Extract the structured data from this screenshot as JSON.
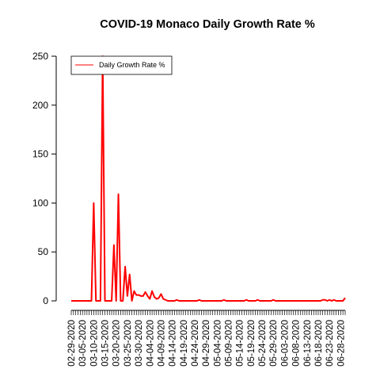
{
  "chart_data": {
    "type": "line",
    "title": "COVID-19 Monaco Daily Growth Rate %",
    "xlabel": "",
    "ylabel": "",
    "ylim": [
      0,
      250
    ],
    "yticks": [
      0,
      50,
      100,
      150,
      200,
      250
    ],
    "x_start": "02-29-2020",
    "x_end": "06-30-2020",
    "xtick_labels": [
      "02-29-2020",
      "03-05-2020",
      "03-10-2020",
      "03-15-2020",
      "03-20-2020",
      "03-25-2020",
      "03-30-2020",
      "04-04-2020",
      "04-09-2020",
      "04-14-2020",
      "04-19-2020",
      "04-24-2020",
      "04-29-2020",
      "05-04-2020",
      "05-09-2020",
      "05-14-2020",
      "05-19-2020",
      "05-24-2020",
      "05-29-2020",
      "06-03-2020",
      "06-08-2020",
      "06-13-2020",
      "06-18-2020",
      "06-23-2020",
      "06-28-2020"
    ],
    "legend": {
      "position": "top-left"
    },
    "colors": {
      "series": "#ff0000"
    },
    "series": [
      {
        "name": "Daily Growth Rate %",
        "points": [
          [
            "02-29-2020",
            0
          ],
          [
            "03-01-2020",
            0
          ],
          [
            "03-02-2020",
            0
          ],
          [
            "03-03-2020",
            0
          ],
          [
            "03-04-2020",
            0
          ],
          [
            "03-05-2020",
            0
          ],
          [
            "03-06-2020",
            0
          ],
          [
            "03-07-2020",
            0
          ],
          [
            "03-08-2020",
            0
          ],
          [
            "03-09-2020",
            0
          ],
          [
            "03-10-2020",
            100
          ],
          [
            "03-11-2020",
            0
          ],
          [
            "03-12-2020",
            0
          ],
          [
            "03-13-2020",
            0
          ],
          [
            "03-14-2020",
            250
          ],
          [
            "03-15-2020",
            0
          ],
          [
            "03-16-2020",
            0
          ],
          [
            "03-17-2020",
            0
          ],
          [
            "03-18-2020",
            0
          ],
          [
            "03-19-2020",
            57
          ],
          [
            "03-20-2020",
            0
          ],
          [
            "03-21-2020",
            109
          ],
          [
            "03-22-2020",
            0
          ],
          [
            "03-23-2020",
            0
          ],
          [
            "03-24-2020",
            35
          ],
          [
            "03-25-2020",
            5
          ],
          [
            "03-26-2020",
            27
          ],
          [
            "03-27-2020",
            0
          ],
          [
            "03-28-2020",
            10
          ],
          [
            "03-29-2020",
            6
          ],
          [
            "03-30-2020",
            6
          ],
          [
            "03-31-2020",
            5
          ],
          [
            "04-01-2020",
            5
          ],
          [
            "04-02-2020",
            9
          ],
          [
            "04-03-2020",
            5
          ],
          [
            "04-04-2020",
            2
          ],
          [
            "04-05-2020",
            10
          ],
          [
            "04-06-2020",
            4
          ],
          [
            "04-07-2020",
            2
          ],
          [
            "04-08-2020",
            3
          ],
          [
            "04-09-2020",
            7
          ],
          [
            "04-10-2020",
            2
          ],
          [
            "04-11-2020",
            1
          ],
          [
            "04-12-2020",
            0
          ],
          [
            "04-13-2020",
            0
          ],
          [
            "04-14-2020",
            0
          ],
          [
            "04-15-2020",
            0
          ],
          [
            "04-16-2020",
            1
          ],
          [
            "04-17-2020",
            0
          ],
          [
            "04-18-2020",
            0
          ],
          [
            "04-19-2020",
            0
          ],
          [
            "04-20-2020",
            0
          ],
          [
            "04-21-2020",
            0
          ],
          [
            "04-22-2020",
            0
          ],
          [
            "04-23-2020",
            0
          ],
          [
            "04-24-2020",
            0
          ],
          [
            "04-25-2020",
            0
          ],
          [
            "04-26-2020",
            1
          ],
          [
            "04-27-2020",
            0
          ],
          [
            "04-28-2020",
            0
          ],
          [
            "04-29-2020",
            0
          ],
          [
            "04-30-2020",
            0
          ],
          [
            "05-01-2020",
            0
          ],
          [
            "05-02-2020",
            0
          ],
          [
            "05-03-2020",
            0
          ],
          [
            "05-04-2020",
            0
          ],
          [
            "05-05-2020",
            0
          ],
          [
            "05-06-2020",
            0
          ],
          [
            "05-07-2020",
            1
          ],
          [
            "05-08-2020",
            0
          ],
          [
            "05-09-2020",
            0
          ],
          [
            "05-10-2020",
            0
          ],
          [
            "05-11-2020",
            0
          ],
          [
            "05-12-2020",
            0
          ],
          [
            "05-13-2020",
            0
          ],
          [
            "05-14-2020",
            0
          ],
          [
            "05-15-2020",
            0
          ],
          [
            "05-16-2020",
            0
          ],
          [
            "05-17-2020",
            1
          ],
          [
            "05-18-2020",
            0
          ],
          [
            "05-19-2020",
            0
          ],
          [
            "05-20-2020",
            0
          ],
          [
            "05-21-2020",
            0
          ],
          [
            "05-22-2020",
            1
          ],
          [
            "05-23-2020",
            0
          ],
          [
            "05-24-2020",
            0
          ],
          [
            "05-25-2020",
            0
          ],
          [
            "05-26-2020",
            0
          ],
          [
            "05-27-2020",
            0
          ],
          [
            "05-28-2020",
            0
          ],
          [
            "05-29-2020",
            1
          ],
          [
            "05-30-2020",
            0
          ],
          [
            "05-31-2020",
            0
          ],
          [
            "06-01-2020",
            0
          ],
          [
            "06-02-2020",
            0
          ],
          [
            "06-03-2020",
            0
          ],
          [
            "06-04-2020",
            0
          ],
          [
            "06-05-2020",
            0
          ],
          [
            "06-06-2020",
            0
          ],
          [
            "06-07-2020",
            0
          ],
          [
            "06-08-2020",
            0
          ],
          [
            "06-09-2020",
            0
          ],
          [
            "06-10-2020",
            0
          ],
          [
            "06-11-2020",
            0
          ],
          [
            "06-12-2020",
            0
          ],
          [
            "06-13-2020",
            0
          ],
          [
            "06-14-2020",
            0
          ],
          [
            "06-15-2020",
            0
          ],
          [
            "06-16-2020",
            0
          ],
          [
            "06-17-2020",
            0
          ],
          [
            "06-18-2020",
            0
          ],
          [
            "06-19-2020",
            0
          ],
          [
            "06-20-2020",
            1
          ],
          [
            "06-21-2020",
            1
          ],
          [
            "06-22-2020",
            0
          ],
          [
            "06-23-2020",
            1
          ],
          [
            "06-24-2020",
            0
          ],
          [
            "06-25-2020",
            1
          ],
          [
            "06-26-2020",
            0
          ],
          [
            "06-27-2020",
            0
          ],
          [
            "06-28-2020",
            0
          ],
          [
            "06-29-2020",
            0
          ],
          [
            "06-30-2020",
            3
          ]
        ]
      }
    ]
  }
}
